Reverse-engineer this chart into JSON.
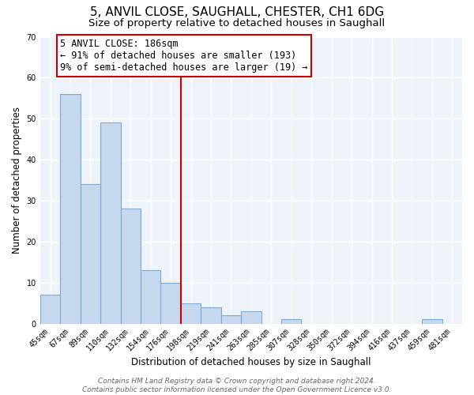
{
  "title": "5, ANVIL CLOSE, SAUGHALL, CHESTER, CH1 6DG",
  "subtitle": "Size of property relative to detached houses in Saughall",
  "xlabel": "Distribution of detached houses by size in Saughall",
  "ylabel": "Number of detached properties",
  "bar_labels": [
    "45sqm",
    "67sqm",
    "89sqm",
    "110sqm",
    "132sqm",
    "154sqm",
    "176sqm",
    "198sqm",
    "219sqm",
    "241sqm",
    "263sqm",
    "285sqm",
    "307sqm",
    "328sqm",
    "350sqm",
    "372sqm",
    "394sqm",
    "416sqm",
    "437sqm",
    "459sqm",
    "481sqm"
  ],
  "bar_values": [
    7,
    56,
    34,
    49,
    28,
    13,
    10,
    5,
    4,
    2,
    3,
    0,
    1,
    0,
    0,
    0,
    0,
    0,
    0,
    1,
    0
  ],
  "bar_color": "#c5d8ee",
  "bar_edge_color": "#7badd4",
  "vline_color": "#cc0000",
  "vline_x_index": 7,
  "annotation_text": "5 ANVIL CLOSE: 186sqm\n← 91% of detached houses are smaller (193)\n9% of semi-detached houses are larger (19) →",
  "annotation_box_color": "#ffffff",
  "annotation_box_edge": "#cc0000",
  "ylim": [
    0,
    70
  ],
  "yticks": [
    0,
    10,
    20,
    30,
    40,
    50,
    60,
    70
  ],
  "footer_line1": "Contains HM Land Registry data © Crown copyright and database right 2024.",
  "footer_line2": "Contains public sector information licensed under the Open Government Licence v3.0.",
  "plot_bg_color": "#eef3fa",
  "fig_bg_color": "#ffffff",
  "grid_color": "#ffffff",
  "title_fontsize": 11,
  "subtitle_fontsize": 9.5,
  "tick_fontsize": 7,
  "ylabel_fontsize": 8.5,
  "xlabel_fontsize": 8.5,
  "footer_fontsize": 6.5,
  "ann_fontsize": 8.5
}
